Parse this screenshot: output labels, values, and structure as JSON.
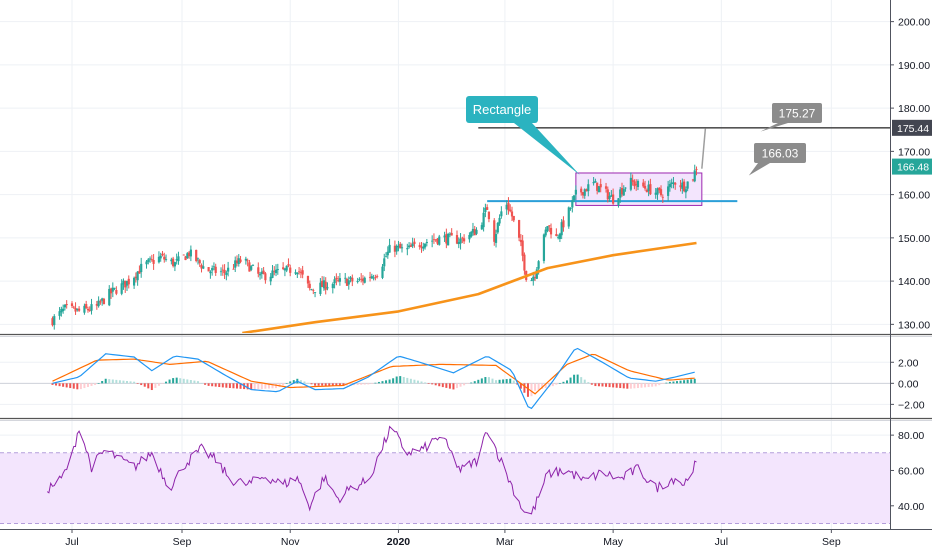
{
  "chart_data": [
    {
      "type": "candlestick",
      "panel": "price",
      "ylim": [
        128,
        205
      ],
      "y_ticks": [
        "130.00",
        "140.00",
        "150.00",
        "160.00",
        "170.00",
        "180.00",
        "190.00",
        "200.00"
      ],
      "x_ticks": [
        "Jul",
        "Sep",
        "Nov",
        "2020",
        "Mar",
        "May",
        "Jul",
        "Sep"
      ],
      "close_path": [
        [
          "2019-06-20",
          131.0
        ],
        [
          "2019-06-27",
          133.5
        ],
        [
          "2019-07-05",
          133.0
        ],
        [
          "2019-07-15",
          134.0
        ],
        [
          "2019-07-22",
          137.0
        ],
        [
          "2019-08-02",
          140.0
        ],
        [
          "2019-08-10",
          143.5
        ],
        [
          "2019-08-20",
          145.5
        ],
        [
          "2019-08-28",
          144.0
        ],
        [
          "2019-09-05",
          146.5
        ],
        [
          "2019-09-15",
          142.5
        ],
        [
          "2019-09-25",
          142.0
        ],
        [
          "2019-10-05",
          145.0
        ],
        [
          "2019-10-15",
          141.0
        ],
        [
          "2019-10-25",
          142.0
        ],
        [
          "2019-11-05",
          143.0
        ],
        [
          "2019-11-12",
          138.0
        ],
        [
          "2019-11-20",
          139.0
        ],
        [
          "2019-12-01",
          140.0
        ],
        [
          "2019-12-10",
          140.0
        ],
        [
          "2019-12-20",
          142.0
        ],
        [
          "2019-12-28",
          148.0
        ],
        [
          "2020-01-05",
          147.0
        ],
        [
          "2020-01-15",
          149.0
        ],
        [
          "2020-01-25",
          150.0
        ],
        [
          "2020-02-05",
          149.5
        ],
        [
          "2020-02-15",
          152.0
        ],
        [
          "2020-02-20",
          157.0
        ],
        [
          "2020-02-24",
          150.0
        ],
        [
          "2020-03-01",
          159.0
        ],
        [
          "2020-03-05",
          155.0
        ],
        [
          "2020-03-10",
          148.0
        ],
        [
          "2020-03-14",
          139.0
        ],
        [
          "2020-03-18",
          142.0
        ],
        [
          "2020-03-25",
          153.0
        ],
        [
          "2020-03-30",
          150.0
        ],
        [
          "2020-04-05",
          155.0
        ],
        [
          "2020-04-10",
          160.0
        ],
        [
          "2020-04-20",
          162.5
        ],
        [
          "2020-05-01",
          159.0
        ],
        [
          "2020-05-10",
          163.0
        ],
        [
          "2020-05-20",
          161.5
        ],
        [
          "2020-05-28",
          160.0
        ],
        [
          "2020-06-05",
          163.0
        ],
        [
          "2020-06-10",
          162.0
        ],
        [
          "2020-06-15",
          164.0
        ],
        [
          "2020-06-17",
          166.5
        ]
      ],
      "ma_line": [
        [
          "2019-10-05",
          128.0
        ],
        [
          "2019-11-15",
          130.5
        ],
        [
          "2020-01-01",
          133.0
        ],
        [
          "2020-02-15",
          137.0
        ],
        [
          "2020-03-25",
          143.0
        ],
        [
          "2020-05-01",
          146.0
        ],
        [
          "2020-06-17",
          148.8
        ]
      ],
      "last_price_label": "166.48",
      "drawings": {
        "rectangle": {
          "label": "Rectangle",
          "x0": "2020-04-10",
          "x1": "2020-06-20",
          "y0": 157.5,
          "y1": 165.0
        },
        "support_line": {
          "x0": "2020-02-20",
          "x1": "2020-07-10",
          "y": 158.5
        },
        "target_line": {
          "x0": "2020-02-15",
          "x1": "2020-12-31",
          "y": 175.44,
          "axis_label": "175.44"
        },
        "target_callout": {
          "text": "175.27",
          "x": "2020-07-20",
          "y": 175.27
        },
        "projection_callout": {
          "text": "166.03",
          "x": "2020-07-20",
          "y": 166.03
        },
        "projection_leg": {
          "x0": "2020-06-20",
          "y0": 166.0,
          "x1": "2020-06-22",
          "y1": 175.3
        }
      }
    },
    {
      "type": "macd",
      "panel": "macd",
      "ylim": [
        -3.2,
        4.4
      ],
      "y_ticks": [
        "2.00",
        "0.00",
        "−2.00"
      ],
      "macd_path": [
        [
          "2019-06-20",
          0.0
        ],
        [
          "2019-07-05",
          0.6
        ],
        [
          "2019-07-20",
          2.8
        ],
        [
          "2019-08-05",
          2.5
        ],
        [
          "2019-08-15",
          1.2
        ],
        [
          "2019-08-28",
          2.6
        ],
        [
          "2019-09-10",
          2.3
        ],
        [
          "2019-09-25",
          0.8
        ],
        [
          "2019-10-10",
          -0.6
        ],
        [
          "2019-10-25",
          -0.8
        ],
        [
          "2019-11-05",
          0.2
        ],
        [
          "2019-11-15",
          -0.6
        ],
        [
          "2019-12-01",
          -0.5
        ],
        [
          "2019-12-15",
          0.6
        ],
        [
          "2020-01-01",
          2.6
        ],
        [
          "2020-01-15",
          1.9
        ],
        [
          "2020-02-01",
          1.0
        ],
        [
          "2020-02-20",
          2.6
        ],
        [
          "2020-03-05",
          1.2
        ],
        [
          "2020-03-15",
          -2.6
        ],
        [
          "2020-03-28",
          0.2
        ],
        [
          "2020-04-10",
          3.4
        ],
        [
          "2020-04-25",
          2.0
        ],
        [
          "2020-05-10",
          0.5
        ],
        [
          "2020-05-25",
          0.2
        ],
        [
          "2020-06-05",
          0.6
        ],
        [
          "2020-06-17",
          1.1
        ]
      ],
      "signal_path": [
        [
          "2019-06-20",
          0.2
        ],
        [
          "2019-07-15",
          2.2
        ],
        [
          "2019-08-05",
          2.3
        ],
        [
          "2019-08-25",
          1.8
        ],
        [
          "2019-09-15",
          2.1
        ],
        [
          "2019-10-10",
          0.2
        ],
        [
          "2019-11-01",
          -0.4
        ],
        [
          "2019-12-01",
          -0.2
        ],
        [
          "2019-12-28",
          1.6
        ],
        [
          "2020-01-25",
          1.8
        ],
        [
          "2020-02-25",
          1.7
        ],
        [
          "2020-03-18",
          -1.0
        ],
        [
          "2020-04-05",
          1.8
        ],
        [
          "2020-04-20",
          2.8
        ],
        [
          "2020-05-10",
          1.2
        ],
        [
          "2020-06-01",
          0.3
        ],
        [
          "2020-06-17",
          0.5
        ]
      ]
    },
    {
      "type": "line",
      "panel": "rsi",
      "ylim": [
        28,
        88
      ],
      "y_ticks": [
        "80.00",
        "60.00",
        "40.00"
      ],
      "band": [
        30,
        70
      ],
      "series": [
        {
          "points": [
            [
              "2019-06-15",
              48
            ],
            [
              "2019-06-25",
              55
            ],
            [
              "2019-07-01",
              68
            ],
            [
              "2019-07-05",
              85
            ],
            [
              "2019-07-12",
              62
            ],
            [
              "2019-07-20",
              72
            ],
            [
              "2019-07-28",
              66
            ],
            [
              "2019-08-05",
              62
            ],
            [
              "2019-08-15",
              70
            ],
            [
              "2019-08-25",
              50
            ],
            [
              "2019-09-03",
              64
            ],
            [
              "2019-09-12",
              72
            ],
            [
              "2019-09-20",
              66
            ],
            [
              "2019-09-28",
              55
            ],
            [
              "2019-10-08",
              52
            ],
            [
              "2019-10-18",
              57
            ],
            [
              "2019-10-28",
              52
            ],
            [
              "2019-11-05",
              56
            ],
            [
              "2019-11-12",
              40
            ],
            [
              "2019-11-20",
              56
            ],
            [
              "2019-11-28",
              44
            ],
            [
              "2019-12-05",
              50
            ],
            [
              "2019-12-15",
              54
            ],
            [
              "2019-12-28",
              85
            ],
            [
              "2020-01-05",
              70
            ],
            [
              "2020-01-15",
              72
            ],
            [
              "2020-01-25",
              80
            ],
            [
              "2020-02-05",
              60
            ],
            [
              "2020-02-15",
              66
            ],
            [
              "2020-02-20",
              84
            ],
            [
              "2020-03-01",
              60
            ],
            [
              "2020-03-10",
              40
            ],
            [
              "2020-03-15",
              33
            ],
            [
              "2020-03-18",
              40
            ],
            [
              "2020-03-25",
              58
            ],
            [
              "2020-04-05",
              60
            ],
            [
              "2020-04-15",
              54
            ],
            [
              "2020-04-25",
              59
            ],
            [
              "2020-05-05",
              55
            ],
            [
              "2020-05-15",
              61
            ],
            [
              "2020-05-25",
              50
            ],
            [
              "2020-06-05",
              56
            ],
            [
              "2020-06-10",
              52
            ],
            [
              "2020-06-15",
              62
            ],
            [
              "2020-06-17",
              63
            ]
          ]
        }
      ]
    }
  ],
  "colors": {
    "up": "#26a69a",
    "down": "#ef5350",
    "ma": "#f7931a",
    "macd_line": "#2196f3",
    "signal_line": "#ff6d00",
    "rsi_line": "#8e24aa",
    "rsi_band": "#f3e5fd",
    "rectangle_stroke": "#9c27b0",
    "rectangle_fill": "#f3e5fd",
    "callout_teal": "#2bb3c0",
    "callout_gray": "#8c8c8c",
    "support_line": "#2b9fd8",
    "target_line": "#555555",
    "last_price": "#26a69a",
    "grid": "#eef1f5"
  }
}
